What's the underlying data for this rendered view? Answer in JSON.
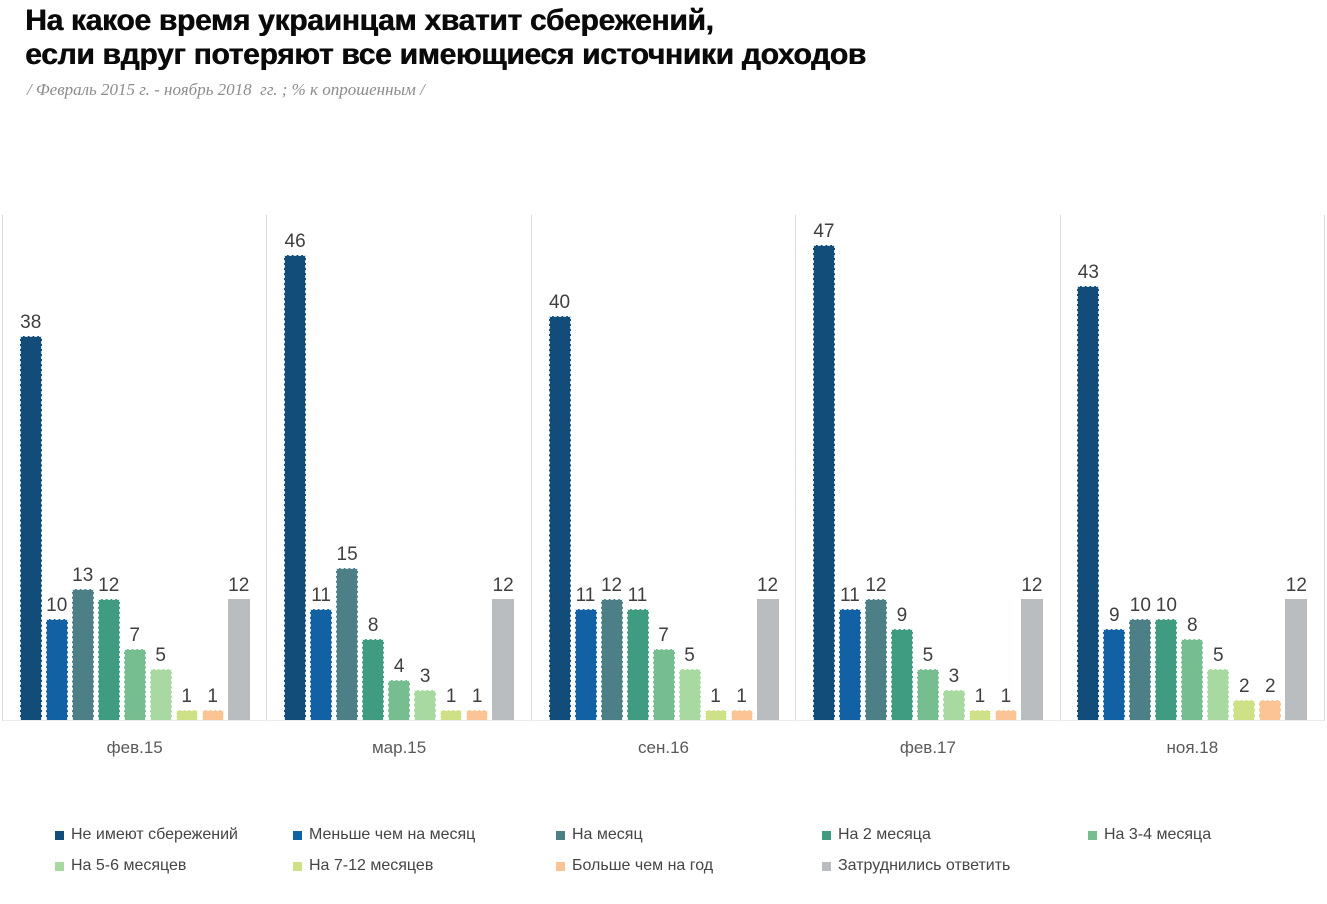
{
  "header": {
    "title_line1": "На какое время украинцам хватит сбережений,",
    "title_line2": "если вдруг потеряют все имеющиеся источники доходов",
    "subtitle": "/ Февраль 2015 г. - ноябрь 2018  гг. ; % к опрошенным /"
  },
  "chart_data": {
    "type": "bar",
    "title": "На какое время украинцам хватит сбережений, если вдруг потеряют все имеющиеся источники доходов",
    "subtitle": "Февраль 2015 г. - ноябрь 2018 гг. ; % к опрошенным",
    "categories": [
      "фев.15",
      "мар.15",
      "сен.16",
      "фев.17",
      "ноя.18"
    ],
    "series": [
      {
        "name": "Не имеют сбережений",
        "color": "#114d78",
        "values": [
          38,
          46,
          40,
          47,
          43
        ]
      },
      {
        "name": "Меньше чем на месяц",
        "color": "#1161a4",
        "values": [
          10,
          11,
          11,
          11,
          9
        ]
      },
      {
        "name": "На месяц",
        "color": "#4c7f86",
        "values": [
          13,
          15,
          12,
          12,
          10
        ]
      },
      {
        "name": "На 2 месяца",
        "color": "#3f9c80",
        "values": [
          12,
          8,
          11,
          9,
          10
        ]
      },
      {
        "name": "На 3-4 месяца",
        "color": "#76be90",
        "values": [
          7,
          4,
          7,
          5,
          8
        ]
      },
      {
        "name": "На 5-6 месяцев",
        "color": "#a8d9a1",
        "values": [
          5,
          3,
          5,
          3,
          5
        ]
      },
      {
        "name": "На 7-12 месяцев",
        "color": "#cfe187",
        "values": [
          1,
          1,
          1,
          1,
          2
        ]
      },
      {
        "name": "Больше чем на год",
        "color": "#fbc494",
        "values": [
          1,
          1,
          1,
          1,
          2
        ]
      },
      {
        "name": "Затруднились ответить",
        "color": "#babdc0",
        "values": [
          12,
          12,
          12,
          12,
          12
        ]
      }
    ],
    "ylim": [
      0,
      50
    ],
    "grid": false,
    "value_labels": true,
    "legend_position": "bottom"
  }
}
